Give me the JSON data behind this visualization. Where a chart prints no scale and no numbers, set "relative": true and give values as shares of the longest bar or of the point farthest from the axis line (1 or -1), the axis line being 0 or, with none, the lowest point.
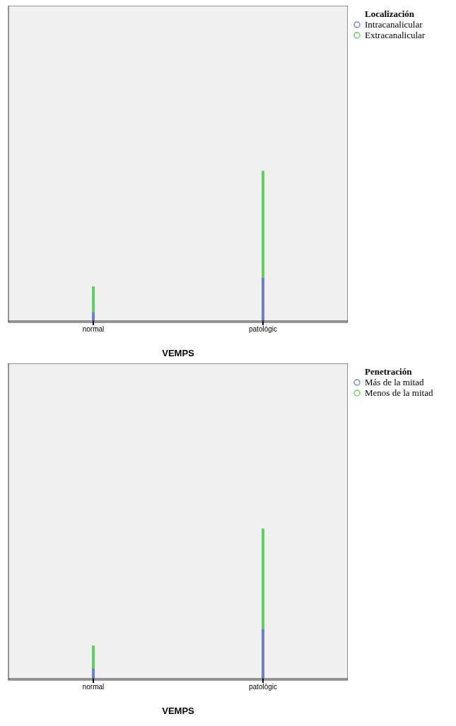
{
  "chart_data": [
    {
      "type": "bar",
      "stacked": true,
      "relative": true,
      "xlabel": "VEMPS",
      "legend_title": "Localización",
      "legend": "top right",
      "categories": [
        "normal",
        "patològic"
      ],
      "series": [
        {
          "name": "Intracanalicular",
          "color": "#6f7fd0",
          "values": [
            0.06,
            0.29
          ]
        },
        {
          "name": "Extracanalicular",
          "color": "#5fd060",
          "values": [
            0.17,
            0.71
          ]
        }
      ]
    },
    {
      "type": "bar",
      "stacked": true,
      "relative": true,
      "xlabel": "VEMPS",
      "legend_title": "Penetración",
      "legend": "top right",
      "categories": [
        "normal",
        "patològic"
      ],
      "series": [
        {
          "name": "Más de la mitad",
          "color": "#6f7fd0",
          "values": [
            0.07,
            0.33
          ]
        },
        {
          "name": "Menos de la mitad",
          "color": "#5fd060",
          "values": [
            0.15,
            0.67
          ]
        }
      ]
    }
  ]
}
